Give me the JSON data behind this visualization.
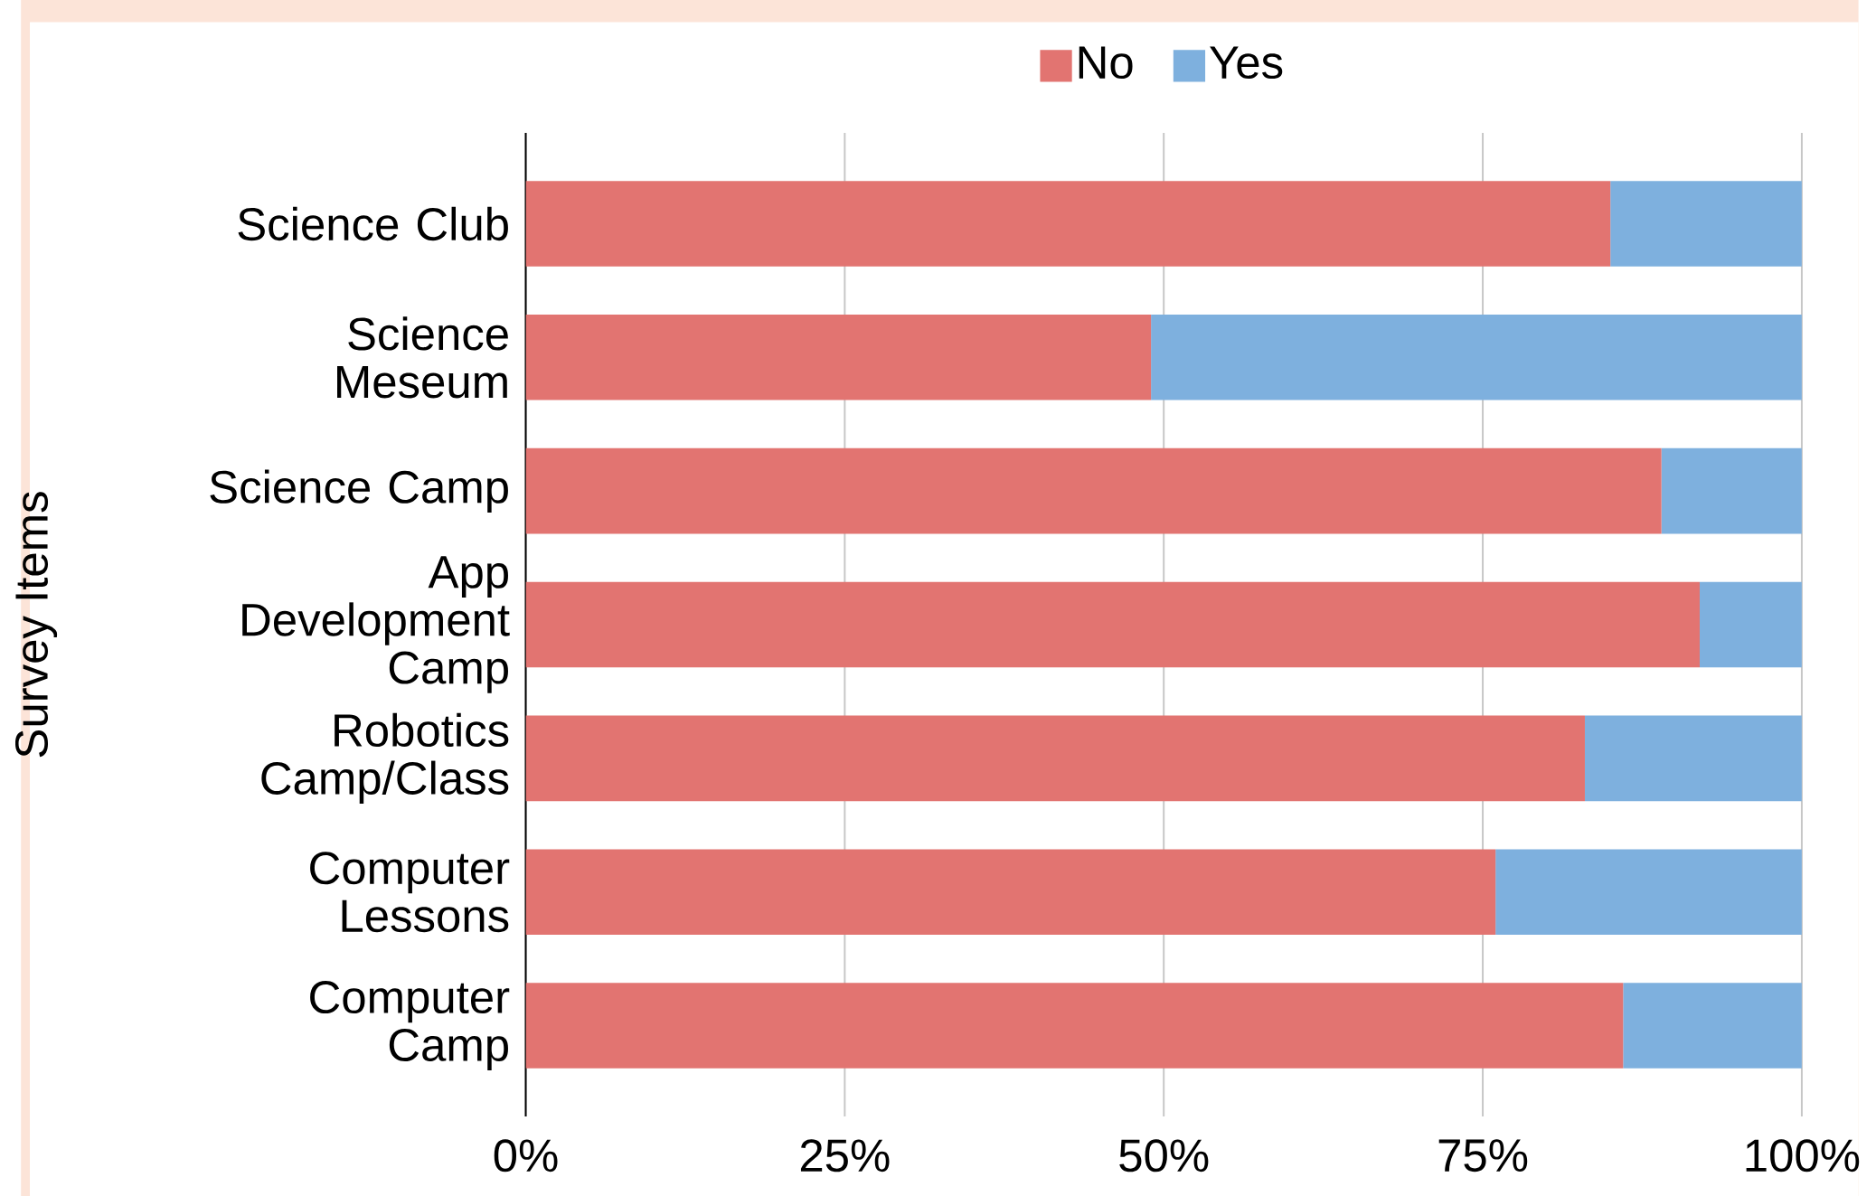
{
  "chart_data": {
    "type": "bar",
    "orientation": "horizontal",
    "stacked": true,
    "ylabel": "Survey Items",
    "categories": [
      "Science Club",
      "Science Meseum",
      "Science Camp",
      "App Development Camp",
      "Robotics Camp/Class",
      "Computer Lessons",
      "Computer Camp"
    ],
    "series": [
      {
        "name": "No",
        "color": "#e27471",
        "values": [
          85,
          49,
          89,
          92,
          83,
          76,
          86
        ]
      },
      {
        "name": "Yes",
        "color": "#7eb0de",
        "values": [
          15,
          51,
          11,
          8,
          17,
          24,
          14
        ]
      }
    ],
    "xlim": [
      0,
      100
    ],
    "xticks": [
      {
        "value": 0,
        "label": "0%"
      },
      {
        "value": 25,
        "label": "25%"
      },
      {
        "value": 50,
        "label": "50%"
      },
      {
        "value": 75,
        "label": "75%"
      },
      {
        "value": 100,
        "label": "100%"
      }
    ],
    "grid": "x",
    "legend": "top"
  }
}
